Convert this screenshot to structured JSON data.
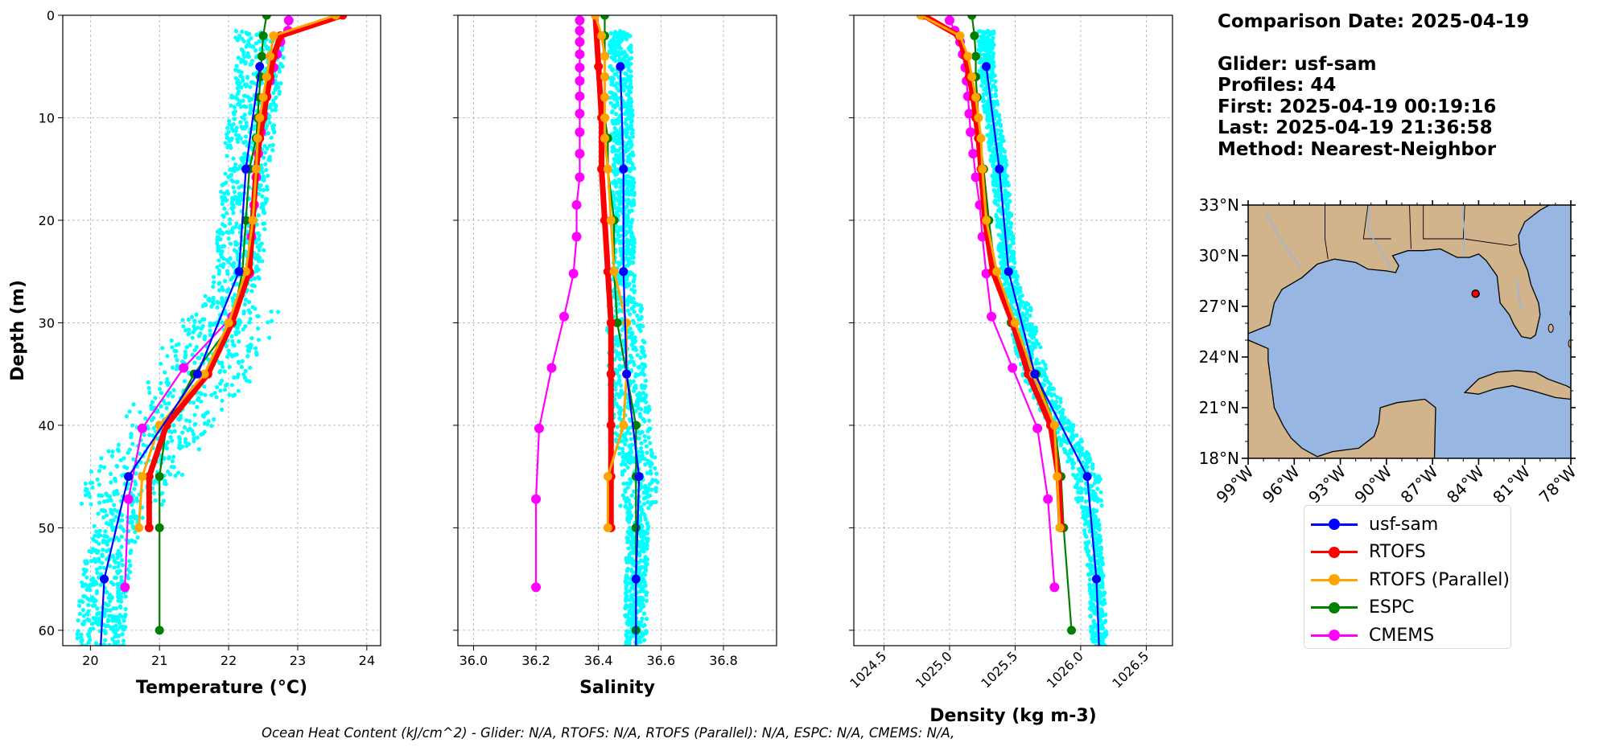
{
  "info": {
    "comparison_date": "Comparison Date: 2025-04-19",
    "glider": "Glider: usf-sam",
    "profiles": "Profiles: 44",
    "first": "First: 2025-04-19 00:19:16",
    "last": "Last: 2025-04-19 21:36:58",
    "method": "Method: Nearest-Neighbor"
  },
  "footnote": "Ocean Heat Content (kJ/cm^2) - Glider: N/A,  RTOFS: N/A,  RTOFS (Parallel): N/A,  ESPC: N/A,  CMEMS: N/A,",
  "legend": [
    {
      "label": "usf-sam",
      "color": "#0000ff"
    },
    {
      "label": "RTOFS",
      "color": "#ff0000"
    },
    {
      "label": "RTOFS (Parallel)",
      "color": "#ffa500"
    },
    {
      "label": "ESPC",
      "color": "#008000"
    },
    {
      "label": "CMEMS",
      "color": "#ff00ff"
    }
  ],
  "colors": {
    "glider_scatter": "#00ffff",
    "land": "#d2b48c",
    "ocean": "#97b6e1"
  },
  "map": {
    "lat_ticks": [
      "18°N",
      "21°N",
      "24°N",
      "27°N",
      "30°N",
      "33°N"
    ],
    "lon_ticks": [
      "99°W",
      "96°W",
      "93°W",
      "90°W",
      "87°W",
      "84°W",
      "81°W",
      "78°W"
    ],
    "lon_range": [
      -99,
      -78
    ],
    "lat_range": [
      18,
      33
    ],
    "glider_position": {
      "lon": -84.2,
      "lat": 27.75
    }
  },
  "chart_data": [
    {
      "type": "line",
      "xlabel": "Temperature (°C)",
      "ylabel": "Depth (m)",
      "xlim": [
        19.6,
        24.2
      ],
      "ylim": [
        61.5,
        0
      ],
      "x_ticks": [
        20,
        21,
        22,
        23,
        24
      ],
      "y_ticks": [
        0,
        10,
        20,
        30,
        40,
        50,
        60
      ],
      "grid": true,
      "series": [
        {
          "name": "usf-sam",
          "depth": [
            5,
            15,
            25,
            35,
            45,
            55,
            61.5
          ],
          "values": [
            22.45,
            22.25,
            22.15,
            21.55,
            20.55,
            20.2,
            20.15
          ]
        },
        {
          "name": "RTOFS",
          "depth": [
            0,
            2,
            4,
            6,
            8,
            10,
            12,
            15,
            20,
            25,
            30,
            35,
            40,
            45,
            50
          ],
          "values": [
            23.65,
            22.75,
            22.65,
            22.6,
            22.55,
            22.5,
            22.45,
            22.4,
            22.35,
            22.3,
            22.05,
            21.7,
            21.1,
            20.85,
            20.85
          ]
        },
        {
          "name": "RTOFS (Parallel)",
          "depth": [
            0,
            2,
            4,
            6,
            8,
            10,
            12,
            15,
            20,
            25,
            30,
            35,
            40,
            45,
            50
          ],
          "values": [
            23.55,
            22.65,
            22.6,
            22.55,
            22.5,
            22.45,
            22.42,
            22.4,
            22.35,
            22.25,
            22.0,
            21.65,
            21.0,
            20.75,
            20.7
          ]
        },
        {
          "name": "ESPC",
          "depth": [
            0,
            2,
            4,
            6,
            8,
            10,
            12,
            15,
            20,
            25,
            30,
            35,
            40,
            45,
            50,
            60
          ],
          "values": [
            22.55,
            22.5,
            22.48,
            22.46,
            22.44,
            22.42,
            22.4,
            22.3,
            22.25,
            22.2,
            22.05,
            21.5,
            21.1,
            21.0,
            21.0,
            21.0
          ]
        },
        {
          "name": "CMEMS",
          "depth": [
            0.5,
            1.5,
            2.6,
            3.8,
            5.1,
            6.4,
            7.9,
            9.6,
            11.4,
            13.5,
            15.8,
            18.5,
            21.6,
            25.2,
            29.4,
            34.4,
            40.3,
            47.2,
            55.8
          ],
          "values": [
            22.87,
            22.86,
            22.75,
            22.7,
            22.65,
            22.6,
            22.55,
            22.5,
            22.47,
            22.43,
            22.4,
            22.37,
            22.33,
            22.3,
            22.05,
            21.35,
            20.75,
            20.55,
            20.5
          ]
        }
      ]
    },
    {
      "type": "line",
      "xlabel": "Salinity",
      "xlim": [
        35.95,
        36.97
      ],
      "ylim": [
        61.5,
        0
      ],
      "x_ticks": [
        36.0,
        36.2,
        36.4,
        36.6,
        36.8
      ],
      "grid": true,
      "series": [
        {
          "name": "usf-sam",
          "depth": [
            5,
            15,
            25,
            35,
            45,
            55,
            61.5
          ],
          "values": [
            36.47,
            36.48,
            36.48,
            36.49,
            36.53,
            36.52,
            36.52
          ]
        },
        {
          "name": "RTOFS",
          "depth": [
            0,
            5,
            10,
            15,
            20,
            25,
            30,
            35,
            40,
            45,
            50
          ],
          "values": [
            36.39,
            36.4,
            36.41,
            36.41,
            36.42,
            36.43,
            36.44,
            36.44,
            36.44,
            36.44,
            36.44
          ]
        },
        {
          "name": "RTOFS (Parallel)",
          "depth": [
            0,
            2,
            4,
            6,
            8,
            10,
            12,
            15,
            20,
            25,
            30,
            35,
            40,
            45,
            50
          ],
          "values": [
            36.39,
            36.41,
            36.42,
            36.42,
            36.42,
            36.42,
            36.42,
            36.43,
            36.44,
            36.45,
            36.49,
            36.49,
            36.48,
            36.43,
            36.43
          ]
        },
        {
          "name": "ESPC",
          "depth": [
            0,
            2,
            4,
            6,
            8,
            10,
            12,
            15,
            20,
            25,
            30,
            35,
            40,
            45,
            50,
            60
          ],
          "values": [
            36.42,
            36.42,
            36.42,
            36.42,
            36.42,
            36.42,
            36.43,
            36.43,
            36.45,
            36.45,
            36.46,
            36.49,
            36.52,
            36.52,
            36.52,
            36.52
          ]
        },
        {
          "name": "CMEMS",
          "depth": [
            0.5,
            1.5,
            2.6,
            3.8,
            5.1,
            6.4,
            7.9,
            9.6,
            11.4,
            13.5,
            15.8,
            18.5,
            21.6,
            25.2,
            29.4,
            34.4,
            40.3,
            47.2,
            55.8
          ],
          "values": [
            36.34,
            36.34,
            36.34,
            36.34,
            36.34,
            36.34,
            36.34,
            36.34,
            36.34,
            36.34,
            36.34,
            36.33,
            36.33,
            36.32,
            36.29,
            36.25,
            36.21,
            36.2,
            36.2
          ]
        }
      ]
    },
    {
      "type": "line",
      "xlabel": "Density (kg m-3)",
      "xlim": [
        1024.27,
        1026.7
      ],
      "ylim": [
        61.5,
        0
      ],
      "x_ticks": [
        1024.5,
        1025.0,
        1025.5,
        1026.0,
        1026.5
      ],
      "grid": true,
      "series": [
        {
          "name": "usf-sam",
          "depth": [
            5,
            15,
            25,
            35,
            45,
            55,
            61.5
          ],
          "values": [
            1025.28,
            1025.38,
            1025.45,
            1025.65,
            1026.05,
            1026.12,
            1026.14
          ]
        },
        {
          "name": "RTOFS",
          "depth": [
            0,
            2,
            4,
            6,
            8,
            10,
            12,
            15,
            20,
            25,
            30,
            35,
            40,
            45,
            50
          ],
          "values": [
            1024.8,
            1025.07,
            1025.12,
            1025.15,
            1025.18,
            1025.2,
            1025.22,
            1025.24,
            1025.27,
            1025.33,
            1025.48,
            1025.6,
            1025.77,
            1025.83,
            1025.85
          ]
        },
        {
          "name": "RTOFS (Parallel)",
          "depth": [
            0,
            2,
            4,
            6,
            8,
            10,
            12,
            15,
            20,
            25,
            30,
            35,
            40,
            45,
            50
          ],
          "values": [
            1024.78,
            1025.08,
            1025.14,
            1025.17,
            1025.2,
            1025.22,
            1025.24,
            1025.25,
            1025.28,
            1025.36,
            1025.5,
            1025.64,
            1025.8,
            1025.82,
            1025.84
          ]
        },
        {
          "name": "ESPC",
          "depth": [
            0,
            2,
            4,
            6,
            8,
            10,
            12,
            15,
            20,
            25,
            30,
            35,
            40,
            45,
            50,
            60
          ],
          "values": [
            1025.17,
            1025.19,
            1025.2,
            1025.2,
            1025.21,
            1025.22,
            1025.23,
            1025.26,
            1025.3,
            1025.35,
            1025.47,
            1025.66,
            1025.8,
            1025.85,
            1025.87,
            1025.93
          ]
        },
        {
          "name": "CMEMS",
          "depth": [
            0.5,
            1.5,
            2.6,
            3.8,
            5.1,
            6.4,
            7.9,
            9.6,
            11.4,
            13.5,
            15.8,
            18.5,
            21.6,
            25.2,
            29.4,
            34.4,
            40.3,
            47.2,
            55.8
          ],
          "values": [
            1025.0,
            1025.04,
            1025.08,
            1025.1,
            1025.12,
            1025.13,
            1025.14,
            1025.15,
            1025.16,
            1025.18,
            1025.2,
            1025.23,
            1025.25,
            1025.28,
            1025.32,
            1025.48,
            1025.67,
            1025.75,
            1025.8
          ]
        }
      ]
    }
  ]
}
